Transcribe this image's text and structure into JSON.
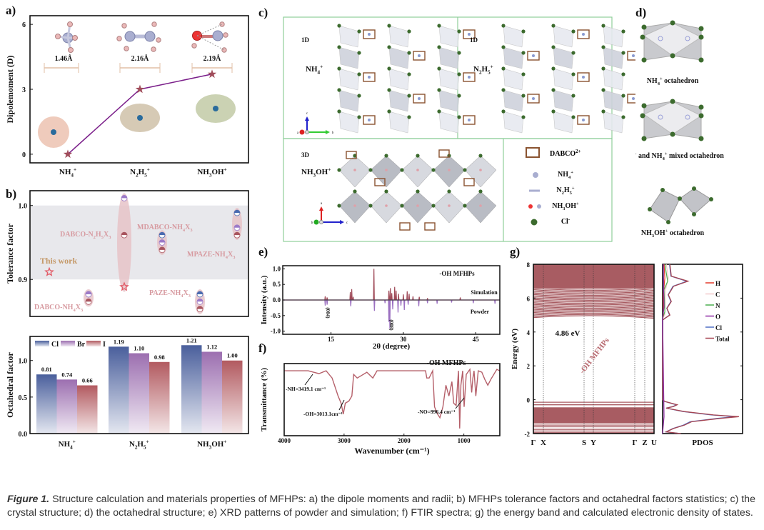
{
  "panels": {
    "a": {
      "label": "a)"
    },
    "b": {
      "label": "b)"
    },
    "c": {
      "label": "c)"
    },
    "d": {
      "label": "d)"
    },
    "e": {
      "label": "e)"
    },
    "f": {
      "label": "f)"
    },
    "g": {
      "label": "g)"
    }
  },
  "chart_data": [
    {
      "id": "a",
      "type": "line",
      "title": "",
      "xlabel": "",
      "ylabel": "Dipolemoment (D)",
      "categories": [
        "NH4+",
        "N2H5+",
        "NH3OH+"
      ],
      "category_labels": [
        [
          "NH",
          "4",
          "+"
        ],
        [
          "N",
          "2",
          "H",
          "5",
          "+"
        ],
        [
          "NH",
          "3",
          "OH",
          "+"
        ]
      ],
      "values": [
        0.0,
        3.0,
        3.7
      ],
      "ylim": [
        -0.4,
        6.4
      ],
      "yticks": [
        0,
        3,
        6
      ],
      "radii": [
        "1.46Å",
        "2.16Å",
        "2.19Å"
      ],
      "colors": {
        "line": "#7b1f8a",
        "marker": "#a04c5a",
        "arrow": "#e2bfa6"
      }
    },
    {
      "id": "b-top",
      "type": "scatter",
      "ylabel": "Tolerance factor",
      "ylim": [
        0.85,
        1.02
      ],
      "yticks": [
        "0.9",
        "1.0"
      ],
      "band": [
        0.9,
        1.0
      ],
      "groups": [
        {
          "name": "This work",
          "points": [
            {
              "y": 0.91,
              "marker": "star"
            }
          ]
        },
        {
          "name": "DABCO-NH4X3",
          "points": [
            {
              "y": 0.88,
              "color": "Cl"
            },
            {
              "y": 0.88,
              "color": "Br"
            },
            {
              "y": 0.87,
              "color": "I"
            }
          ]
        },
        {
          "name": "DABCO-N2H5X3",
          "points": [
            {
              "y": 1.01,
              "color": "Br"
            },
            {
              "y": 0.96,
              "color": "I"
            },
            {
              "y": 0.89,
              "marker": "star"
            }
          ]
        },
        {
          "name": "MDABCO-NH4X3",
          "points": [
            {
              "y": 0.96,
              "color": "Cl"
            },
            {
              "y": 0.95,
              "color": "Br"
            },
            {
              "y": 0.94,
              "color": "I"
            }
          ]
        },
        {
          "name": "PAZE-NH4X3",
          "points": [
            {
              "y": 0.88,
              "color": "Cl"
            },
            {
              "y": 0.87,
              "color": "Br"
            },
            {
              "y": 0.86,
              "color": "I"
            }
          ]
        },
        {
          "name": "MPAZE-NH4X3",
          "points": [
            {
              "y": 0.99,
              "color": "Cl"
            },
            {
              "y": 0.97,
              "color": "Br"
            },
            {
              "y": 0.96,
              "color": "I"
            }
          ]
        }
      ],
      "labels": {
        "this_work": "This work",
        "dabco_nh4": [
          "DABCO-NH",
          "4",
          "X",
          "3"
        ],
        "dabco_n2h5": [
          "DABCO-N",
          "2",
          "H",
          "5",
          "X",
          "3"
        ],
        "mdabco": [
          "MDABCO-NH",
          "4",
          "X",
          "3"
        ],
        "paze": [
          "PAZE-NH",
          "4",
          "X",
          "3"
        ],
        "mpaze": [
          "MPAZE-NH",
          "4",
          "X",
          "3"
        ]
      }
    },
    {
      "id": "b-bottom",
      "type": "bar",
      "ylabel": "Octahedral factor",
      "categories": [
        "NH4+",
        "N2H5+",
        "NH3OH+"
      ],
      "ylim": [
        0.0,
        1.33
      ],
      "yticks": [
        "0.0",
        "0.5",
        "1.0"
      ],
      "series": [
        {
          "name": "Cl",
          "values": [
            0.81,
            1.19,
            1.21
          ],
          "color": "#4a5f9c"
        },
        {
          "name": "Br",
          "values": [
            0.74,
            1.1,
            1.12
          ],
          "color": "#9c6fb0"
        },
        {
          "name": "I",
          "values": [
            0.66,
            0.98,
            1.0
          ],
          "color": "#b25a60"
        }
      ],
      "value_labels": [
        [
          "0.81",
          "0.74",
          "0.66"
        ],
        [
          "1.19",
          "1.10",
          "0.98"
        ],
        [
          "1.21",
          "1.12",
          "1.00"
        ]
      ],
      "legend": "top-left"
    },
    {
      "id": "e",
      "type": "line",
      "xlabel": "2θ (degree)",
      "ylabel": "Intensity (a.u.)",
      "xlim": [
        5,
        50
      ],
      "ylim": [
        -1.1,
        1.1
      ],
      "xticks": [
        "15",
        "30",
        "45"
      ],
      "yticks": [
        "1.0",
        "0.5",
        "0.0",
        "-0.5",
        "-1.0"
      ],
      "annotation": "-OH MFHPs",
      "series": [
        {
          "name": "Simulation",
          "color": "#a04c5a",
          "peaks": [
            [
              13.8,
              0.12
            ],
            [
              14.2,
              0.08
            ],
            [
              19.0,
              0.25
            ],
            [
              19.3,
              0.35
            ],
            [
              19.6,
              0.1
            ],
            [
              23.9,
              1.0
            ],
            [
              27.0,
              0.3
            ],
            [
              27.3,
              0.38
            ],
            [
              27.6,
              0.22
            ],
            [
              28.2,
              0.42
            ],
            [
              28.5,
              0.3
            ],
            [
              29.0,
              0.2
            ],
            [
              30.0,
              0.18
            ],
            [
              30.8,
              0.28
            ],
            [
              31.2,
              0.2
            ],
            [
              32.0,
              0.12
            ],
            [
              33.3,
              0.1
            ],
            [
              35.0,
              0.06
            ],
            [
              41.8,
              0.08
            ]
          ]
        },
        {
          "name": "Powder",
          "color": "#9b6fc0",
          "peaks": [
            [
              13.8,
              -0.18
            ],
            [
              14.2,
              -0.15
            ],
            [
              19.1,
              -0.2
            ],
            [
              24.0,
              -0.35
            ],
            [
              26.2,
              -0.1
            ],
            [
              27.0,
              -0.7
            ],
            [
              27.2,
              -0.92
            ],
            [
              27.8,
              -0.3
            ],
            [
              28.9,
              -0.4
            ],
            [
              29.5,
              -0.18
            ],
            [
              30.2,
              -0.32
            ],
            [
              31.0,
              -0.15
            ],
            [
              33.2,
              -0.2
            ],
            [
              35.0,
              -0.1
            ],
            [
              37.0,
              -0.12
            ],
            [
              40.0,
              -0.08
            ],
            [
              44.5,
              -0.1
            ],
            [
              49.0,
              -0.12
            ]
          ]
        }
      ],
      "peak_labels": [
        {
          "x": 14.0,
          "text": "(004)"
        },
        {
          "x": 27.2,
          "text": "(008)"
        }
      ]
    },
    {
      "id": "f",
      "type": "line",
      "xlabel": "Wavenumber (cm⁻¹)",
      "ylabel": "Transmittance (%)",
      "xlim": [
        4000,
        400
      ],
      "xticks": [
        "4000",
        "3000",
        "2000",
        "1000"
      ],
      "annotation": "-OH MFHPs",
      "color": "#b5606a",
      "points": [
        [
          4000,
          0.9
        ],
        [
          3600,
          0.9
        ],
        [
          3419,
          0.86
        ],
        [
          3300,
          0.9
        ],
        [
          3200,
          0.8
        ],
        [
          3100,
          0.55
        ],
        [
          3050,
          0.45
        ],
        [
          3013,
          0.3
        ],
        [
          2980,
          0.45
        ],
        [
          2920,
          0.48
        ],
        [
          2870,
          0.55
        ],
        [
          2840,
          0.85
        ],
        [
          2780,
          0.8
        ],
        [
          2700,
          0.84
        ],
        [
          2620,
          0.88
        ],
        [
          2520,
          0.8
        ],
        [
          2450,
          0.9
        ],
        [
          2000,
          0.9
        ],
        [
          1640,
          0.9
        ],
        [
          1620,
          0.8
        ],
        [
          1580,
          0.8
        ],
        [
          1520,
          0.9
        ],
        [
          1490,
          0.4
        ],
        [
          1440,
          0.3
        ],
        [
          1400,
          0.25
        ],
        [
          1350,
          0.4
        ],
        [
          1300,
          0.7
        ],
        [
          1250,
          0.55
        ],
        [
          1200,
          0.75
        ],
        [
          1170,
          0.45
        ],
        [
          1130,
          0.42
        ],
        [
          1090,
          0.9
        ],
        [
          1070,
          0.1
        ],
        [
          1050,
          0.7
        ],
        [
          1020,
          0.9
        ],
        [
          996,
          0.4
        ],
        [
          960,
          0.85
        ],
        [
          900,
          0.92
        ],
        [
          870,
          0.6
        ],
        [
          850,
          0.8
        ],
        [
          830,
          0.9
        ],
        [
          800,
          0.55
        ],
        [
          760,
          0.9
        ],
        [
          700,
          0.88
        ],
        [
          650,
          0.78
        ],
        [
          600,
          0.7
        ],
        [
          550,
          0.78
        ],
        [
          450,
          0.92
        ],
        [
          400,
          0.9
        ]
      ],
      "annotations": [
        "-NH=3419.1 cm⁻¹",
        "-OH=3013.1cm⁻¹",
        "-NO=996.4 cm⁻¹"
      ]
    },
    {
      "id": "g-band",
      "type": "line",
      "ylabel": "Energy (eV)",
      "ylim": [
        -2,
        8
      ],
      "yticks": [
        "-2",
        "0",
        "2",
        "4",
        "6",
        "8"
      ],
      "xticks": [
        "Γ",
        "X",
        "S",
        "Y",
        "Γ",
        "Z",
        "U"
      ],
      "bandgap_label": "4.86 eV",
      "watermark": "-OH MFHPs",
      "color": "#a85c62"
    },
    {
      "id": "g-pdos",
      "type": "line",
      "xlabel": "PDOS",
      "legend": "top-right",
      "series": [
        {
          "name": "H",
          "color": "#e33a2a"
        },
        {
          "name": "C",
          "color": "#f2c9cc"
        },
        {
          "name": "N",
          "color": "#4caf50"
        },
        {
          "name": "O",
          "color": "#8e2aa5"
        },
        {
          "name": "Cl",
          "color": "#4f6fc4"
        },
        {
          "name": "Total",
          "color": "#a64450"
        }
      ]
    }
  ],
  "panel_c": {
    "boxes": [
      {
        "dim": "1D",
        "cation": [
          "NH",
          "4",
          "+"
        ]
      },
      {
        "dim": "1D",
        "cation": [
          "N",
          "2",
          "H",
          "5",
          "+"
        ]
      },
      {
        "dim": "3D",
        "cation": [
          "NH",
          "3",
          "OH",
          "+"
        ]
      }
    ],
    "legend": [
      {
        "name": "DABCO",
        "sup": "2+"
      },
      {
        "name": "NH4+",
        "parts": [
          "NH",
          "4",
          "+"
        ]
      },
      {
        "name": "N2H5+",
        "parts": [
          "N",
          "2",
          "H",
          "5",
          "+"
        ]
      },
      {
        "name": "NH3OH+",
        "parts": [
          "NH",
          "3",
          "OH",
          "+"
        ]
      },
      {
        "name": "Cl",
        "sup": "-"
      }
    ],
    "axes_top": [
      "a",
      "b",
      "c"
    ],
    "axes_bottom": [
      "b",
      "c",
      "a"
    ],
    "border_color": "#8fcf9a"
  },
  "panel_d": {
    "captions": [
      [
        "NH",
        "4",
        "+",
        " octahedron"
      ],
      [
        "N",
        "2",
        "H",
        "5",
        "+",
        " and NH",
        "4",
        "+",
        " mixed octahedron"
      ],
      [
        "NH",
        "3",
        "OH",
        "+",
        " octahedron"
      ]
    ]
  },
  "caption": {
    "figure_label": "Figure 1.",
    "text": " Structure calculation and materials properties of MFHPs: a) the dipole moments and radii; b) MFHPs tolerance factors and octahedral factors statistics; c) the crystal structure; d) the octahedral structure; e) XRD patterns of powder and simulation; f) FTIR spectra; g) the energy band and calculated electronic density of states."
  }
}
